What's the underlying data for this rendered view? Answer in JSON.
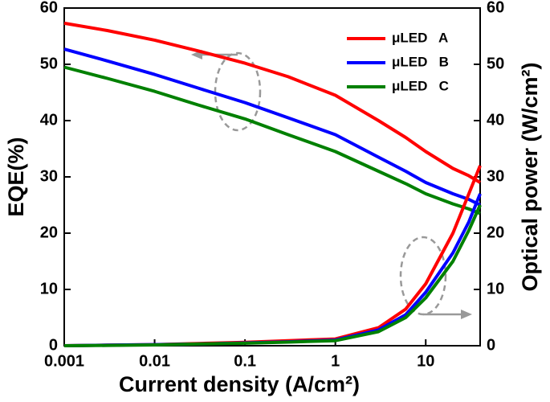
{
  "chart_data": {
    "type": "line",
    "x_label": "Current density (A/cm²)",
    "y_label": "EQE(%)",
    "y2_label": "Optical power (W/cm²)",
    "x": [
      0.001,
      0.003,
      0.01,
      0.03,
      0.1,
      0.3,
      1,
      3,
      6,
      10,
      20,
      30,
      40
    ],
    "xlim": [
      0.001,
      40
    ],
    "xticks": [
      0.001,
      0.01,
      0.1,
      1,
      10
    ],
    "xscale": "log",
    "ylim": [
      0,
      60
    ],
    "yticks": [
      0,
      10,
      20,
      30,
      40,
      50,
      60
    ],
    "y2lim": [
      0,
      60
    ],
    "y2ticks": [
      0,
      10,
      20,
      30,
      40,
      50,
      60
    ],
    "legend": "upper right",
    "series": [
      {
        "name": "μLED   A",
        "color": "#ff0000",
        "values": [
          57.3,
          56,
          54.3,
          52.4,
          50.2,
          47.8,
          44.5,
          40,
          37,
          34.5,
          31.5,
          30.2,
          29
        ]
      },
      {
        "name": "μLED   B",
        "color": "#0000ff",
        "values": [
          52.7,
          50.6,
          48.2,
          45.8,
          43.2,
          40.5,
          37.5,
          33.5,
          31,
          29,
          27,
          26,
          25
        ]
      },
      {
        "name": "μLED   C",
        "color": "#008000",
        "values": [
          49.5,
          47.5,
          45.2,
          42.8,
          40.3,
          37.5,
          34.5,
          31,
          28.8,
          27,
          25.2,
          24.3,
          23.5
        ]
      },
      {
        "color": "#ff0000",
        "axis": "y2",
        "values": [
          0,
          0.1,
          0.2,
          0.4,
          0.6,
          0.9,
          1.2,
          3.2,
          6.5,
          11,
          20,
          27,
          32
        ]
      },
      {
        "color": "#0000ff",
        "axis": "y2",
        "values": [
          0,
          0.1,
          0.2,
          0.3,
          0.5,
          0.7,
          1.0,
          2.8,
          5.5,
          9.5,
          16.5,
          22,
          27
        ]
      },
      {
        "color": "#008000",
        "axis": "y2",
        "values": [
          0,
          0.05,
          0.15,
          0.3,
          0.45,
          0.65,
          0.9,
          2.5,
          5,
          8.5,
          15,
          20.5,
          25
        ]
      }
    ]
  }
}
